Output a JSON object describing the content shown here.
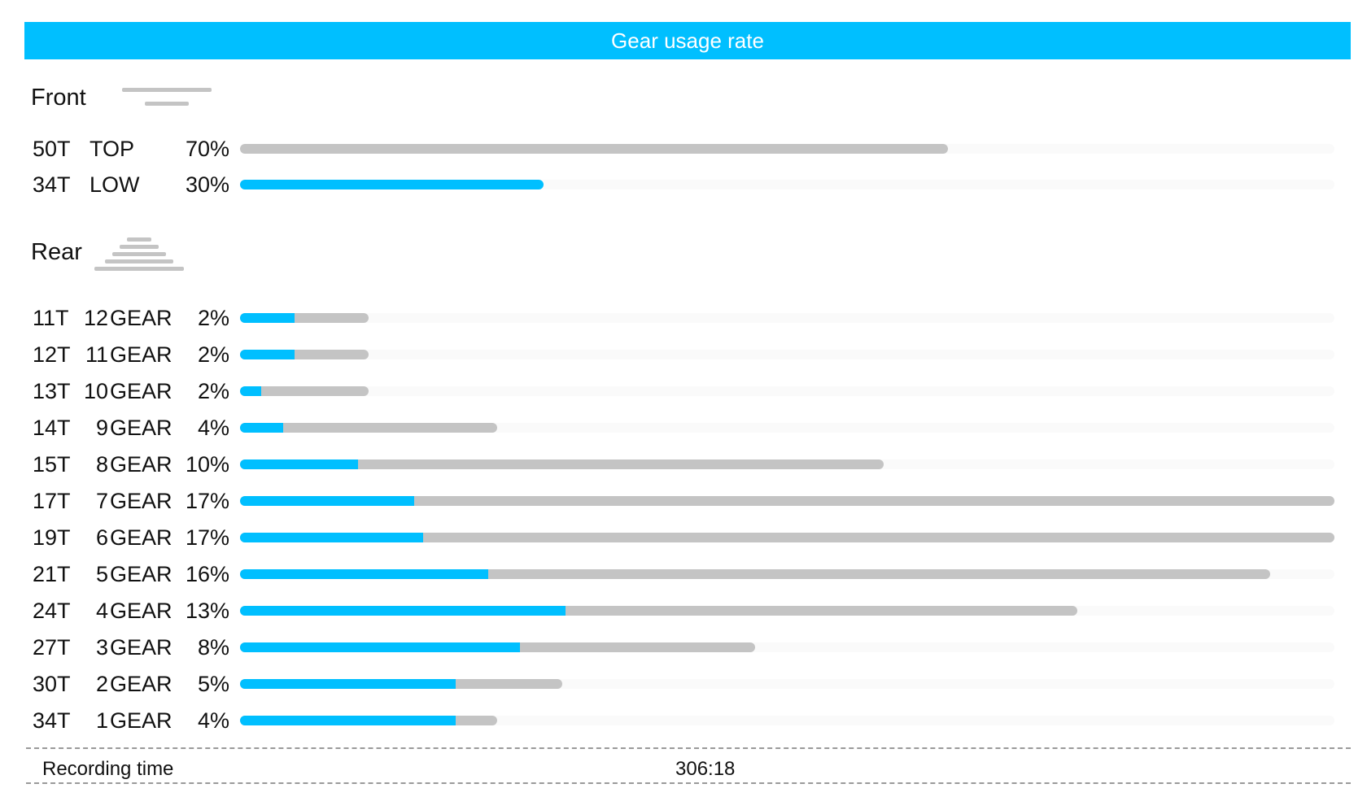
{
  "title": "Gear usage rate",
  "front": {
    "label": "Front",
    "icon": "chainring-icon"
  },
  "rear": {
    "label": "Rear",
    "icon": "cassette-icon"
  },
  "footer": {
    "recording_label": "Recording time",
    "recording_value": "306:18"
  },
  "colors": {
    "accent": "#00bfff",
    "bar_gray": "#c4c4c4"
  },
  "chart_data": [
    {
      "type": "bar",
      "section": "Front",
      "rows": [
        {
          "teeth": "50T",
          "gear": "TOP",
          "percent_label": "70%",
          "value": 70,
          "highlight": 0
        },
        {
          "teeth": "34T",
          "gear": "LOW",
          "percent_label": "30%",
          "value": 30,
          "highlight": 30
        }
      ]
    },
    {
      "type": "bar",
      "section": "Rear",
      "rows": [
        {
          "teeth": "11T",
          "gear_num": "12",
          "gear_word": "GEAR",
          "percent_label": "2%",
          "value": 2,
          "highlight": 0.85
        },
        {
          "teeth": "12T",
          "gear_num": "11",
          "gear_word": "GEAR",
          "percent_label": "2%",
          "value": 2,
          "highlight": 0.85
        },
        {
          "teeth": "13T",
          "gear_num": "10",
          "gear_word": "GEAR",
          "percent_label": "2%",
          "value": 2,
          "highlight": 0.33
        },
        {
          "teeth": "14T",
          "gear_num": "9",
          "gear_word": "GEAR",
          "percent_label": "4%",
          "value": 4,
          "highlight": 0.67
        },
        {
          "teeth": "15T",
          "gear_num": "8",
          "gear_word": "GEAR",
          "percent_label": "10%",
          "value": 10,
          "highlight": 1.83
        },
        {
          "teeth": "17T",
          "gear_num": "7",
          "gear_word": "GEAR",
          "percent_label": "17%",
          "value": 17,
          "highlight": 2.7
        },
        {
          "teeth": "19T",
          "gear_num": "6",
          "gear_word": "GEAR",
          "percent_label": "17%",
          "value": 17,
          "highlight": 2.85
        },
        {
          "teeth": "21T",
          "gear_num": "5",
          "gear_word": "GEAR",
          "percent_label": "16%",
          "value": 16,
          "highlight": 3.85
        },
        {
          "teeth": "24T",
          "gear_num": "4",
          "gear_word": "GEAR",
          "percent_label": "13%",
          "value": 13,
          "highlight": 5.05
        },
        {
          "teeth": "27T",
          "gear_num": "3",
          "gear_word": "GEAR",
          "percent_label": "8%",
          "value": 8,
          "highlight": 4.35
        },
        {
          "teeth": "30T",
          "gear_num": "2",
          "gear_word": "GEAR",
          "percent_label": "5%",
          "value": 5,
          "highlight": 3.35
        },
        {
          "teeth": "34T",
          "gear_num": "1",
          "gear_word": "GEAR",
          "percent_label": "4%",
          "value": 4,
          "highlight": 3.35
        }
      ]
    }
  ]
}
